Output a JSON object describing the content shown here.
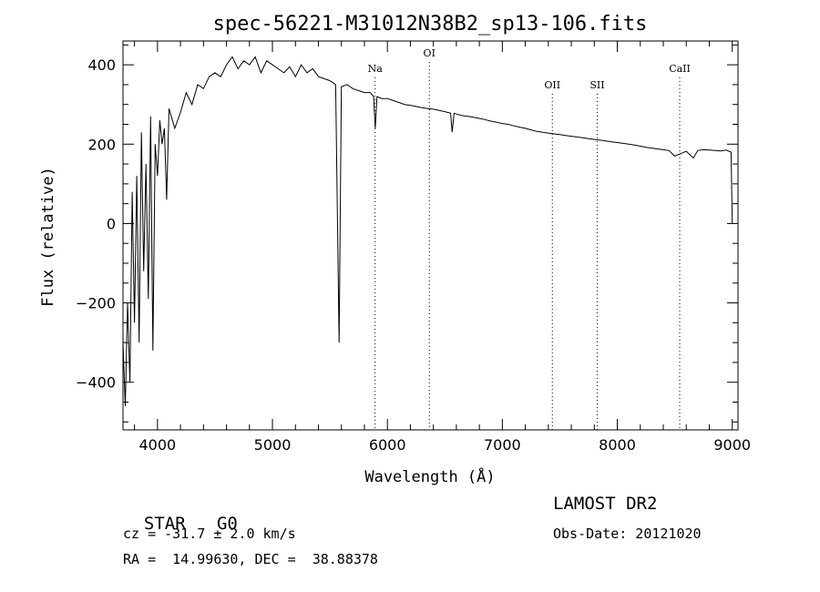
{
  "chart_data": {
    "type": "line",
    "title": "spec-56221-M31012N38B2_sp13-106.fits",
    "xlabel": "Wavelength (Å)",
    "ylabel": "Flux (relative)",
    "xlim": [
      3700,
      9050
    ],
    "ylim": [
      -520,
      460
    ],
    "xticks": [
      4000,
      5000,
      6000,
      7000,
      8000,
      9000
    ],
    "yticks": [
      -400,
      -200,
      0,
      200,
      400
    ],
    "grid": false,
    "line_color": "#000000",
    "series": [
      {
        "x": [
          3700,
          3720,
          3740,
          3760,
          3780,
          3800,
          3820,
          3840,
          3860,
          3880,
          3900,
          3920,
          3940,
          3960,
          3980,
          4000,
          4020,
          4040,
          4060,
          4080,
          4100,
          4150,
          4200,
          4250,
          4300,
          4350,
          4400,
          4450,
          4500,
          4550,
          4600,
          4650,
          4700,
          4750,
          4800,
          4850,
          4900,
          4950,
          5000,
          5050,
          5100,
          5150,
          5200,
          5250,
          5300,
          5350,
          5400,
          5450,
          5500,
          5550,
          5580,
          5600,
          5650,
          5700,
          5750,
          5800,
          5850,
          5880,
          5895,
          5910,
          5950,
          6000,
          6050,
          6100,
          6150,
          6200,
          6250,
          6300,
          6350,
          6400,
          6450,
          6500,
          6550,
          6563,
          6580,
          6600,
          6650,
          6700,
          6750,
          6800,
          6850,
          6900,
          6950,
          7000,
          7050,
          7100,
          7150,
          7200,
          7250,
          7300,
          7350,
          7400,
          7450,
          7500,
          7550,
          7600,
          7650,
          7700,
          7750,
          7800,
          7850,
          7900,
          7950,
          8000,
          8050,
          8100,
          8150,
          8200,
          8250,
          8300,
          8350,
          8400,
          8450,
          8498,
          8542,
          8600,
          8662,
          8700,
          8750,
          8800,
          8850,
          8900,
          8950,
          8970,
          8990,
          9000
        ],
        "y": [
          -300,
          -460,
          -200,
          -400,
          80,
          -250,
          120,
          -300,
          230,
          -120,
          150,
          -190,
          270,
          -320,
          200,
          120,
          260,
          200,
          240,
          60,
          290,
          240,
          280,
          330,
          300,
          350,
          340,
          370,
          380,
          370,
          400,
          420,
          390,
          410,
          400,
          420,
          380,
          410,
          400,
          390,
          380,
          395,
          370,
          400,
          380,
          390,
          370,
          365,
          360,
          350,
          -300,
          345,
          350,
          340,
          335,
          330,
          330,
          320,
          240,
          320,
          315,
          315,
          310,
          305,
          300,
          298,
          295,
          292,
          290,
          288,
          285,
          282,
          278,
          230,
          278,
          276,
          272,
          270,
          268,
          265,
          262,
          258,
          255,
          252,
          250,
          246,
          243,
          240,
          236,
          232,
          230,
          228,
          226,
          224,
          222,
          220,
          218,
          216,
          214,
          212,
          210,
          208,
          206,
          204,
          202,
          200,
          198,
          195,
          192,
          190,
          188,
          186,
          184,
          170,
          175,
          182,
          165,
          184,
          186,
          185,
          184,
          183,
          185,
          182,
          180,
          0
        ]
      }
    ],
    "line_markers": [
      {
        "label": "Na",
        "x": 5893
      },
      {
        "label": "OI",
        "x": 6365
      },
      {
        "label": "OII",
        "x": 7435
      },
      {
        "label": "SII",
        "x": 7825
      },
      {
        "label": "CaII",
        "x": 8543
      }
    ]
  },
  "info": {
    "object": "STAR",
    "subclass": "G0",
    "survey": "LAMOST DR2",
    "velocity": "cz = -31.7 ± 2.0 km/s",
    "obs_date": "Obs-Date: 20121020",
    "coords": "RA =  14.99630, DEC =  38.88378"
  }
}
